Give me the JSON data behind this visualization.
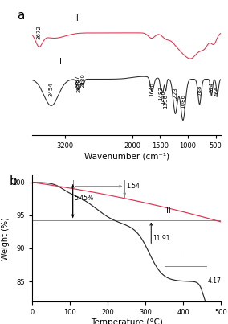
{
  "title_a": "a",
  "title_b": "b",
  "xlabel_a": "Wavenumber (cm⁻¹)",
  "xlabel_b": "Temperature (°C)",
  "ylabel_b": "Weight (%)",
  "color_I": "#2a2a2a",
  "color_II": "#e03050",
  "gray": "#888888",
  "ftir_xticks": [
    3200,
    2000,
    1500,
    1000,
    500
  ],
  "tga_xticks": [
    0,
    100,
    200,
    300,
    400,
    500
  ],
  "tga_yticks": [
    85,
    90,
    95,
    100
  ]
}
